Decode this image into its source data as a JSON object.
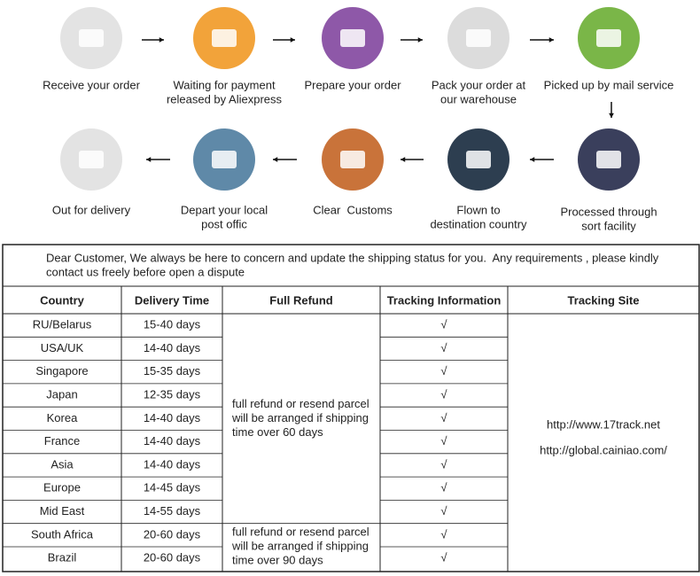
{
  "steps": [
    {
      "label": [
        "Receive your order"
      ]
    },
    {
      "label": [
        "Waiting for payment",
        "released by Aliexpress"
      ]
    },
    {
      "label": [
        "Prepare your order"
      ]
    },
    {
      "label": [
        "Pack your order at",
        "our warehouse"
      ]
    },
    {
      "label": [
        "Picked up by mail service"
      ]
    },
    {
      "label": [
        "Processed through",
        "sort facility"
      ]
    },
    {
      "label": [
        "Flown to",
        "destination country"
      ]
    },
    {
      "label": [
        "Clear  Customs"
      ]
    },
    {
      "label": [
        "Depart your local",
        "post offic"
      ]
    },
    {
      "label": [
        "Out for delivery"
      ]
    }
  ],
  "notice": [
    "Dear Customer, We always be here to concern and update the shipping status for you.  Any requirements , please kindly",
    "contact us freely before open a dispute"
  ],
  "table": {
    "headers": [
      "Country",
      "Delivery Time",
      "Full Refund",
      "Tracking Information",
      "Tracking Site"
    ],
    "rows": [
      [
        "RU/Belarus",
        "15-40 days",
        "√"
      ],
      [
        "USA/UK",
        "14-40 days",
        "√"
      ],
      [
        "Singapore",
        "15-35 days",
        "√"
      ],
      [
        "Japan",
        "12-35 days",
        "√"
      ],
      [
        "Korea",
        "14-40 days",
        "√"
      ],
      [
        "France",
        "14-40 days",
        "√"
      ],
      [
        "Asia",
        "14-40 days",
        "√"
      ],
      [
        "Europe",
        "14-45 days",
        "√"
      ],
      [
        "Mid East",
        "14-55 days",
        "√"
      ],
      [
        "South Africa",
        "20-60 days",
        "√"
      ],
      [
        "Brazil",
        "20-60 days",
        "√"
      ]
    ],
    "refund": [
      [
        "full refund or resend parcel",
        "will be arranged if shipping",
        "time over 60 days"
      ],
      [
        "full refund or resend parcel",
        "will be arranged if shipping",
        "time over 90 days"
      ]
    ],
    "sites": [
      "http://www.17track.net",
      "http://global.cainiao.com/"
    ]
  }
}
